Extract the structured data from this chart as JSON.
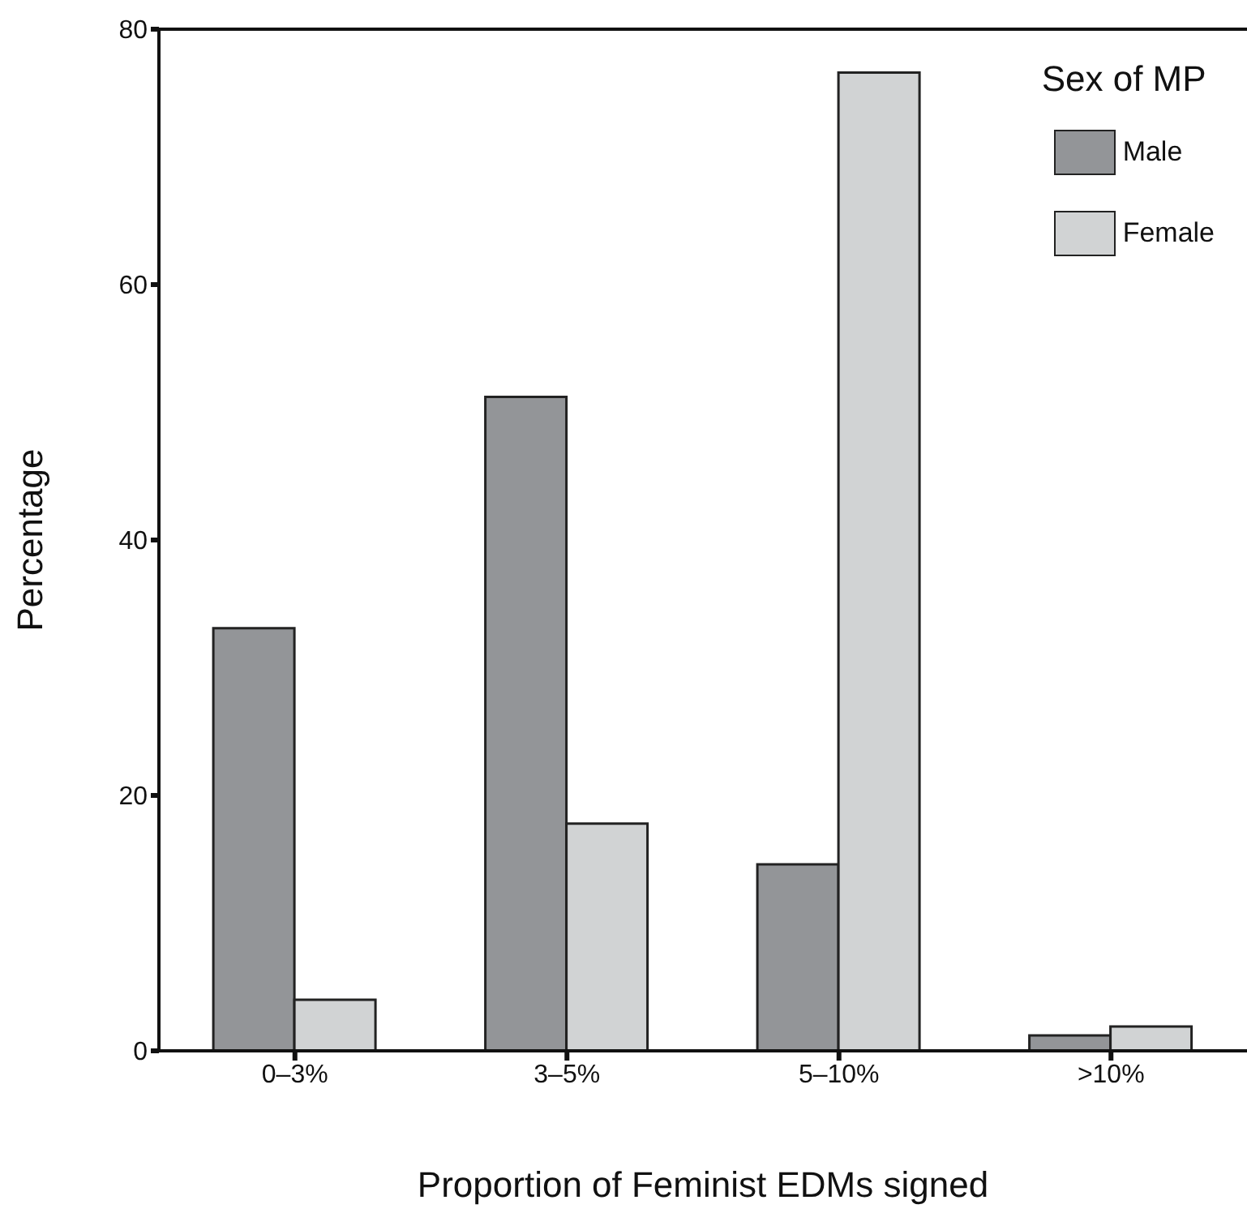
{
  "chart_data": {
    "type": "bar",
    "xlabel": "Proportion of Feminist EDMs signed",
    "ylabel": "Percentage",
    "legend_title": "Sex of MP",
    "categories": [
      "0–3%",
      "3–5%",
      "5–10%",
      ">10%"
    ],
    "series": [
      {
        "name": "Male",
        "color": "#939598",
        "values": [
          33.1,
          51.2,
          14.6,
          1.2
        ]
      },
      {
        "name": "Female",
        "color": "#d1d3d4",
        "values": [
          4.0,
          17.8,
          76.6,
          1.9
        ]
      }
    ],
    "ylim": [
      0,
      80
    ],
    "yticks": [
      0,
      20,
      40,
      60,
      80
    ],
    "grid": false,
    "legend": "top right"
  }
}
